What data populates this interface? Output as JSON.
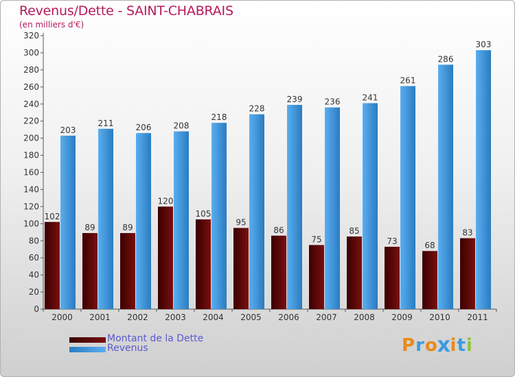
{
  "header": {
    "title": "Revenus/Dette - SAINT-CHABRAIS",
    "subtitle": "(en milliers d'€)"
  },
  "colors": {
    "title": "#b5185a",
    "dette": "#6b0a0a",
    "revenus": "#3d97dd",
    "legend_text": "#5a5acd"
  },
  "chart_data": {
    "type": "bar",
    "title": "Revenus/Dette - SAINT-CHABRAIS",
    "subtitle": "(en milliers d'€)",
    "xlabel": "",
    "ylabel": "",
    "categories": [
      "2000",
      "2001",
      "2002",
      "2003",
      "2004",
      "2005",
      "2006",
      "2007",
      "2008",
      "2009",
      "2010",
      "2011"
    ],
    "series": [
      {
        "name": "Montant de la Dette",
        "color": "#6b0a0a",
        "values": [
          102,
          89,
          89,
          120,
          105,
          95,
          86,
          75,
          85,
          73,
          68,
          83
        ]
      },
      {
        "name": "Revenus",
        "color": "#3d97dd",
        "values": [
          203,
          211,
          206,
          208,
          218,
          228,
          239,
          236,
          241,
          261,
          286,
          303
        ]
      }
    ],
    "ylim": [
      0,
      320
    ],
    "yticks": [
      0,
      20,
      40,
      60,
      80,
      100,
      120,
      140,
      160,
      180,
      200,
      220,
      240,
      260,
      280,
      300,
      320
    ],
    "grid": false,
    "legend": "bottom-left"
  },
  "legend": {
    "items": [
      {
        "label": "Montant de la Dette",
        "color": "#6b0a0a"
      },
      {
        "label": "Revenus",
        "color": "#3d97dd"
      }
    ]
  },
  "logo": {
    "text": "Proxiti",
    "letters": [
      {
        "ch": "P",
        "color": "#e88b1a"
      },
      {
        "ch": "r",
        "color": "#3b9be0"
      },
      {
        "ch": "o",
        "color": "#e88b1a"
      },
      {
        "ch": "x",
        "color": "#3b9be0"
      },
      {
        "ch": "i",
        "color": "#e88b1a"
      },
      {
        "ch": "t",
        "color": "#3b9be0"
      },
      {
        "ch": "i",
        "color": "#8cc63f"
      }
    ]
  }
}
